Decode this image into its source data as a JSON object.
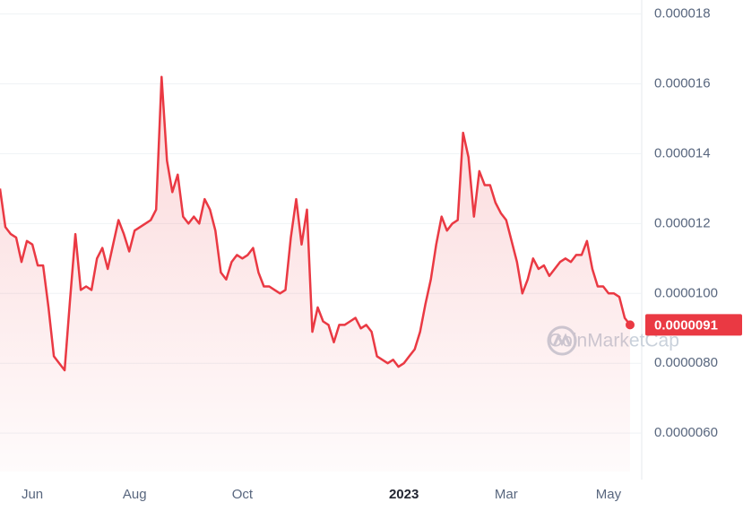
{
  "chart_data": {
    "type": "line",
    "watermark": "CoinMarketCap",
    "categories": [
      null,
      null,
      null,
      null,
      null,
      null,
      "Jun",
      null,
      null,
      null,
      null,
      null,
      null,
      null,
      null,
      null,
      null,
      null,
      null,
      null,
      null,
      null,
      null,
      null,
      null,
      "Aug",
      null,
      null,
      null,
      null,
      null,
      null,
      null,
      null,
      null,
      null,
      null,
      null,
      null,
      null,
      null,
      null,
      null,
      null,
      null,
      "Oct",
      null,
      null,
      null,
      null,
      null,
      null,
      null,
      null,
      null,
      null,
      null,
      null,
      null,
      null,
      null,
      null,
      null,
      null,
      null,
      null,
      null,
      null,
      null,
      null,
      null,
      null,
      null,
      null,
      null,
      "2023",
      null,
      null,
      null,
      null,
      null,
      null,
      null,
      null,
      null,
      null,
      null,
      null,
      null,
      null,
      null,
      null,
      null,
      null,
      "Mar",
      null,
      null,
      null,
      null,
      null,
      null,
      null,
      null,
      null,
      null,
      null,
      null,
      null,
      null,
      null,
      null,
      null,
      null,
      "May",
      null,
      null,
      null,
      null
    ],
    "series": [
      {
        "color": "#ea3943",
        "values": [
          1.3e-05,
          1.19e-05,
          1.17e-05,
          1.16e-05,
          1.09e-05,
          1.15e-05,
          1.14e-05,
          1.08e-05,
          1.08e-05,
          9.6e-06,
          8.2e-06,
          8e-06,
          7.8e-06,
          9.8e-06,
          1.17e-05,
          1.01e-05,
          1.02e-05,
          1.01e-05,
          1.1e-05,
          1.13e-05,
          1.07e-05,
          1.14e-05,
          1.21e-05,
          1.17e-05,
          1.12e-05,
          1.18e-05,
          1.19e-05,
          1.2e-05,
          1.21e-05,
          1.24e-05,
          1.62e-05,
          1.38e-05,
          1.29e-05,
          1.34e-05,
          1.22e-05,
          1.2e-05,
          1.22e-05,
          1.2e-05,
          1.27e-05,
          1.24e-05,
          1.18e-05,
          1.06e-05,
          1.04e-05,
          1.09e-05,
          1.11e-05,
          1.1e-05,
          1.11e-05,
          1.13e-05,
          1.06e-05,
          1.02e-05,
          1.02e-05,
          1.01e-05,
          1e-05,
          1.01e-05,
          1.16e-05,
          1.27e-05,
          1.14e-05,
          1.24e-05,
          8.9e-06,
          9.6e-06,
          9.2e-06,
          9.1e-06,
          8.6e-06,
          9.1e-06,
          9.1e-06,
          9.2e-06,
          9.3e-06,
          9e-06,
          9.1e-06,
          8.9e-06,
          8.2e-06,
          8.1e-06,
          8e-06,
          8.1e-06,
          7.9e-06,
          8e-06,
          8.2e-06,
          8.4e-06,
          8.9e-06,
          9.7e-06,
          1.04e-05,
          1.14e-05,
          1.22e-05,
          1.18e-05,
          1.2e-05,
          1.21e-05,
          1.46e-05,
          1.39e-05,
          1.22e-05,
          1.35e-05,
          1.31e-05,
          1.31e-05,
          1.26e-05,
          1.23e-05,
          1.21e-05,
          1.15e-05,
          1.09e-05,
          1e-05,
          1.04e-05,
          1.1e-05,
          1.07e-05,
          1.08e-05,
          1.05e-05,
          1.07e-05,
          1.09e-05,
          1.1e-05,
          1.09e-05,
          1.11e-05,
          1.11e-05,
          1.15e-05,
          1.07e-05,
          1.02e-05,
          1.02e-05,
          1e-05,
          1e-05,
          9.9e-06,
          9.3e-06,
          9.1e-06
        ]
      }
    ],
    "current_price": 9.1e-06,
    "ylim": [
      4.9e-06,
      1.84e-05
    ],
    "yticks": [
      1.8e-05,
      1.6e-05,
      1.4e-05,
      1.2e-05,
      {
        "value": 1e-05,
        "label": "0.0000100"
      },
      {
        "value": 8e-06,
        "label": "0.0000080"
      },
      {
        "value": 6e-06,
        "label": "0.0000060"
      }
    ],
    "grid": true
  }
}
